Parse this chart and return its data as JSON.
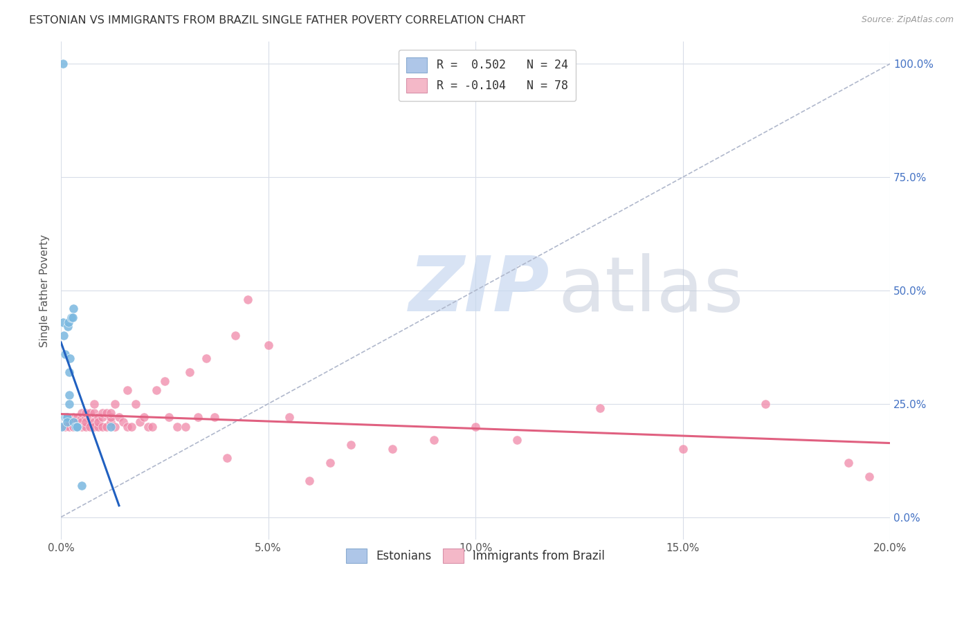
{
  "title": "ESTONIAN VS IMMIGRANTS FROM BRAZIL SINGLE FATHER POVERTY CORRELATION CHART",
  "source": "Source: ZipAtlas.com",
  "ylabel_label": "Single Father Poverty",
  "legend_entries": [
    {
      "label": "R =  0.502   N = 24",
      "color": "#aec6e8"
    },
    {
      "label": "R = -0.104   N = 78",
      "color": "#f4b8c8"
    }
  ],
  "legend_label_estonians": "Estonians",
  "legend_label_brazil": "Immigrants from Brazil",
  "estonian_color": "#7ab8e0",
  "brazil_color": "#f088a8",
  "estonian_line_color": "#2060c0",
  "brazil_line_color": "#e06080",
  "estonian_x": [
    0.0002,
    0.0005,
    0.0007,
    0.001,
    0.001,
    0.0013,
    0.0015,
    0.0015,
    0.0017,
    0.0018,
    0.002,
    0.002,
    0.002,
    0.0022,
    0.0025,
    0.003,
    0.003,
    0.0035,
    0.004,
    0.0038,
    0.0028,
    0.012,
    0.005,
    0.0005
  ],
  "estonian_y": [
    0.2,
    0.43,
    0.4,
    0.22,
    0.36,
    0.22,
    0.22,
    0.21,
    0.42,
    0.43,
    0.27,
    0.32,
    0.25,
    0.35,
    0.44,
    0.46,
    0.21,
    0.2,
    0.2,
    0.2,
    0.44,
    0.2,
    0.07,
    1.0
  ],
  "brazil_x": [
    0.001,
    0.002,
    0.002,
    0.002,
    0.003,
    0.003,
    0.003,
    0.003,
    0.003,
    0.004,
    0.004,
    0.004,
    0.004,
    0.004,
    0.005,
    0.005,
    0.005,
    0.005,
    0.006,
    0.006,
    0.006,
    0.006,
    0.007,
    0.007,
    0.007,
    0.008,
    0.008,
    0.008,
    0.008,
    0.009,
    0.009,
    0.009,
    0.01,
    0.01,
    0.01,
    0.011,
    0.011,
    0.012,
    0.012,
    0.012,
    0.013,
    0.013,
    0.014,
    0.015,
    0.016,
    0.016,
    0.017,
    0.018,
    0.019,
    0.02,
    0.021,
    0.022,
    0.023,
    0.025,
    0.026,
    0.028,
    0.03,
    0.031,
    0.033,
    0.035,
    0.037,
    0.04,
    0.042,
    0.045,
    0.05,
    0.055,
    0.06,
    0.065,
    0.07,
    0.08,
    0.09,
    0.1,
    0.11,
    0.13,
    0.15,
    0.17,
    0.19,
    0.195
  ],
  "brazil_y": [
    0.2,
    0.21,
    0.2,
    0.21,
    0.22,
    0.2,
    0.21,
    0.2,
    0.2,
    0.2,
    0.21,
    0.22,
    0.2,
    0.21,
    0.22,
    0.23,
    0.21,
    0.2,
    0.22,
    0.23,
    0.2,
    0.21,
    0.2,
    0.22,
    0.23,
    0.23,
    0.25,
    0.21,
    0.2,
    0.2,
    0.22,
    0.21,
    0.2,
    0.22,
    0.23,
    0.23,
    0.2,
    0.21,
    0.22,
    0.23,
    0.25,
    0.2,
    0.22,
    0.21,
    0.28,
    0.2,
    0.2,
    0.25,
    0.21,
    0.22,
    0.2,
    0.2,
    0.28,
    0.3,
    0.22,
    0.2,
    0.2,
    0.32,
    0.22,
    0.35,
    0.22,
    0.13,
    0.4,
    0.48,
    0.38,
    0.22,
    0.08,
    0.12,
    0.16,
    0.15,
    0.17,
    0.2,
    0.17,
    0.24,
    0.15,
    0.25,
    0.12,
    0.09
  ],
  "xlim": [
    0.0,
    0.2
  ],
  "ylim": [
    -0.05,
    1.05
  ],
  "xtick_vals": [
    0.0,
    0.05,
    0.1,
    0.15,
    0.2
  ],
  "xtick_labels": [
    "0.0%",
    "5.0%",
    "10.0%",
    "15.0%",
    "20.0%"
  ],
  "ytick_vals": [
    0.0,
    0.25,
    0.5,
    0.75,
    1.0
  ],
  "ytick_labels": [
    "0.0%",
    "25.0%",
    "50.0%",
    "75.0%",
    "100.0%"
  ],
  "grid_color": "#d8dde8",
  "estonian_line_x0": 0.0,
  "estonian_line_x1": 0.014,
  "brazil_line_x0": 0.0,
  "brazil_line_x1": 0.2
}
